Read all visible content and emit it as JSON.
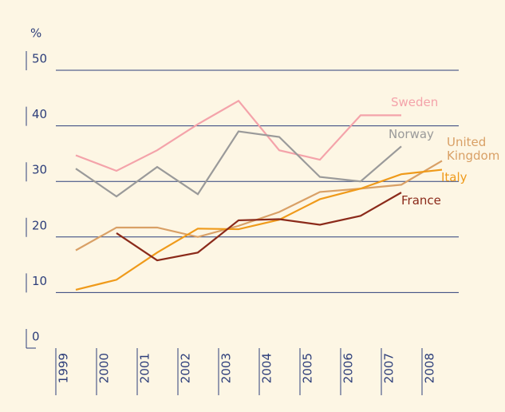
{
  "chart_data": {
    "type": "line",
    "y_label": "%",
    "categories": [
      "1999",
      "2000",
      "2001",
      "2002",
      "2003",
      "2004",
      "2005",
      "2006",
      "2007",
      "2008"
    ],
    "series": [
      {
        "name": "Sweden",
        "color": "#f4a3aa",
        "values": [
          34.7,
          31.9,
          35.6,
          40.3,
          44.5,
          35.6,
          33.9,
          41.9,
          41.9,
          null
        ]
      },
      {
        "name": "Norway",
        "color": "#9a9a9a",
        "values": [
          32.3,
          27.3,
          32.6,
          27.7,
          39,
          38,
          30.8,
          30,
          36.3,
          null
        ]
      },
      {
        "name": "United Kingdom",
        "color": "#d9a066",
        "values": [
          17.6,
          21.7,
          21.7,
          20,
          22,
          24.5,
          28.1,
          28.7,
          29.4,
          33.7
        ]
      },
      {
        "name": "Italy",
        "color": "#ef9a1a",
        "values": [
          10.5,
          12.3,
          17.2,
          21.5,
          21.4,
          23.1,
          26.8,
          28.7,
          31.3,
          32.1
        ]
      },
      {
        "name": "France",
        "color": "#8b2a1a",
        "values": [
          null,
          20.7,
          15.8,
          17.2,
          23,
          23.2,
          22.2,
          23.8,
          28,
          null
        ]
      }
    ],
    "ylim": [
      0,
      50
    ],
    "yticks": [
      0,
      10,
      20,
      30,
      40,
      50
    ],
    "grid": true
  }
}
